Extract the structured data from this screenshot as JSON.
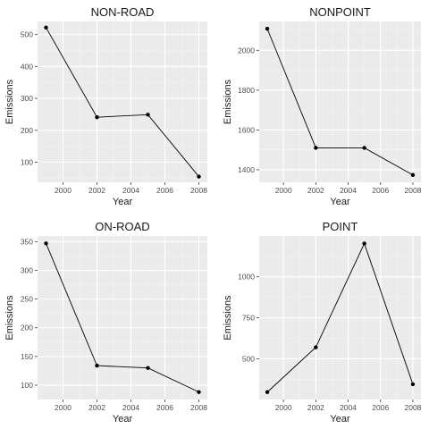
{
  "chart_data": [
    {
      "type": "line",
      "title": "NON-ROAD",
      "xlabel": "Year",
      "ylabel": "Emissions",
      "x": [
        1999,
        2002,
        2005,
        2008
      ],
      "values": [
        522,
        241,
        249,
        55
      ],
      "xlim": [
        1998.5,
        2008.5
      ],
      "ylim": [
        37,
        541
      ],
      "xticks": [
        2000,
        2002,
        2004,
        2006,
        2008
      ],
      "yticks": [
        100,
        200,
        300,
        400,
        500
      ],
      "grid": true
    },
    {
      "type": "line",
      "title": "NONPOINT",
      "xlabel": "Year",
      "ylabel": "Emissions",
      "x": [
        1999,
        2002,
        2005,
        2008
      ],
      "values": [
        2108,
        1510,
        1510,
        1374
      ],
      "xlim": [
        1998.5,
        2008.5
      ],
      "ylim": [
        1337,
        2145
      ],
      "xticks": [
        2000,
        2002,
        2004,
        2006,
        2008
      ],
      "yticks": [
        1400,
        1600,
        1800,
        2000
      ],
      "grid": true
    },
    {
      "type": "line",
      "title": "ON-ROAD",
      "xlabel": "Year",
      "ylabel": "Emissions",
      "x": [
        1999,
        2002,
        2005,
        2008
      ],
      "values": [
        347,
        134,
        130,
        88
      ],
      "xlim": [
        1998.5,
        2008.5
      ],
      "ylim": [
        75,
        360
      ],
      "xticks": [
        2000,
        2002,
        2004,
        2006,
        2008
      ],
      "yticks": [
        100,
        150,
        200,
        250,
        300,
        350
      ],
      "grid": true
    },
    {
      "type": "line",
      "title": "POINT",
      "xlabel": "Year",
      "ylabel": "Emissions",
      "x": [
        1999,
        2002,
        2005,
        2008
      ],
      "values": [
        297,
        570,
        1203,
        345
      ],
      "xlim": [
        1998.5,
        2008.5
      ],
      "ylim": [
        252,
        1249
      ],
      "xticks": [
        2000,
        2002,
        2004,
        2006,
        2008
      ],
      "yticks": [
        500,
        750,
        1000
      ],
      "grid": true
    }
  ]
}
